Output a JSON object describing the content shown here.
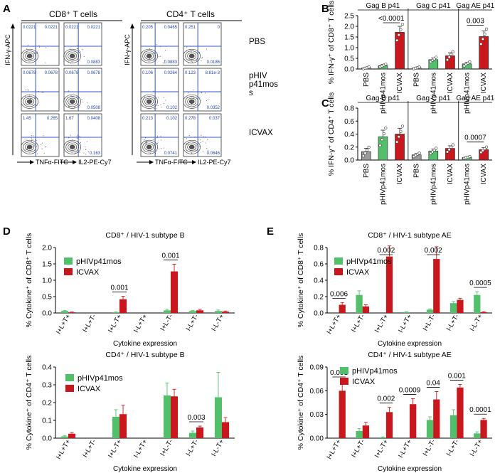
{
  "panels": {
    "A": "A",
    "B": "B",
    "C": "C",
    "D": "D",
    "E": "E"
  },
  "flow": {
    "cd8_title": "CD8⁺ T cells",
    "cd4_title": "CD4⁺ T cells",
    "y_axis_label": "IFN-γ-APC",
    "x_labels": [
      "TNFα-FITC",
      "IL2-PE-Cy7",
      "TNFα-FITC",
      "IL2-PE-Cy7"
    ],
    "rows": [
      {
        "label": "PBS",
        "plots": [
          {
            "ul": "0.0221",
            "ur": "0.0221",
            "lr": ""
          },
          {
            "ul": "0.0221",
            "ur": "0.0221",
            "lr": "0.0883"
          },
          {
            "ul": "0.205",
            "ur": "0.0465",
            "lr": ""
          },
          {
            "ul": "0.251",
            "ur": "0",
            "lr": "0.0186"
          }
        ]
      },
      {
        "label": "pHIV\np41mos\ns",
        "plots": [
          {
            "ul": "0.0678",
            "ur": "0.0678",
            "lr": ""
          },
          {
            "ul": "0.0678",
            "ur": "0.0678",
            "lr": "0.0508"
          },
          {
            "ul": "0.106",
            "ur": "0.0264",
            "lr": ""
          },
          {
            "ul": "0.123",
            "ur": "8.81e-3",
            "lr": "0.0352"
          }
        ]
      },
      {
        "label": "ICVAX",
        "plots": [
          {
            "ul": "1.45",
            "ur": "0.265",
            "lr": ""
          },
          {
            "ul": "1.67",
            "ur": "0.0408",
            "lr": "0.163"
          },
          {
            "ul": "0.213",
            "ur": "0.102",
            "lr": ""
          },
          {
            "ul": "0.278",
            "ur": "0.037",
            "lr": "0.0646"
          }
        ]
      }
    ],
    "extra_lr": [
      "0.0883",
      "0.102",
      "0.0741"
    ]
  },
  "chart_data": [
    {
      "id": "B",
      "type": "bar",
      "ylabel": "% IFN-γ⁺ of CD8⁺ T cells",
      "ylim": [
        0,
        2.5
      ],
      "yticks": [
        "0.0",
        "0.5",
        "1.0",
        "1.5",
        "2.0",
        "2.5"
      ],
      "groups": [
        "Gag B p41",
        "Gag C p41",
        "Gag AE p41"
      ],
      "categories": [
        "PBS",
        "pHIVp41mos",
        "ICVAX",
        "PBS",
        "pHIVp41mos",
        "ICVAX",
        "pHIVp41mos",
        "ICVAX"
      ],
      "values": [
        0.05,
        0.16,
        1.72,
        0.05,
        0.44,
        0.62,
        0.24,
        1.52
      ],
      "errors": [
        0.03,
        0.05,
        0.28,
        0.03,
        0.08,
        0.14,
        0.07,
        0.26
      ],
      "colors": [
        "#9a9a9a",
        "#52c06a",
        "#c8181e",
        "#9a9a9a",
        "#52c06a",
        "#c8181e",
        "#52c06a",
        "#c8181e"
      ],
      "annotations": [
        {
          "label": "<0.0001",
          "from": 1,
          "to": 2
        },
        {
          "label": "0.003",
          "from": 6,
          "to": 7
        }
      ]
    },
    {
      "id": "C",
      "type": "bar",
      "ylabel": "% IFN-γ⁺ of CD4⁺ T cells",
      "ylim": [
        0,
        0.8
      ],
      "yticks": [
        "0.0",
        "0.2",
        "0.4",
        "0.6",
        "0.8"
      ],
      "groups": [
        "Gag B p41",
        "Gag C p41",
        "Gag AE p41"
      ],
      "categories": [
        "PBS",
        "pHIVp41mos",
        "ICVAX",
        "PBS",
        "pHIVp41mos",
        "ICVAX",
        "pHIVp41mos",
        "ICVAX"
      ],
      "values": [
        0.13,
        0.36,
        0.4,
        0.08,
        0.14,
        0.18,
        0.04,
        0.16
      ],
      "errors": [
        0.05,
        0.1,
        0.09,
        0.02,
        0.03,
        0.04,
        0.01,
        0.03
      ],
      "colors": [
        "#9a9a9a",
        "#52c06a",
        "#c8181e",
        "#9a9a9a",
        "#52c06a",
        "#c8181e",
        "#52c06a",
        "#c8181e"
      ],
      "annotations": [
        {
          "label": "0.0007",
          "from": 6,
          "to": 7
        }
      ]
    },
    {
      "id": "D1",
      "type": "bar",
      "title": "CD8⁺ / HIV-1 subtype B",
      "ylabel": "% Cytokine⁺ of CD8⁺ T cells",
      "xlabel": "Cytokine expression",
      "ylim": [
        0,
        2.0
      ],
      "yticks": [
        "0.0",
        "0.5",
        "1.0",
        "1.5",
        "2.0"
      ],
      "categories": [
        "I+L+T+",
        "I+L+T-",
        "I+L-T+",
        "I-L+T+",
        "I+L-T-",
        "I-L+T-",
        "I-L-T+"
      ],
      "series": [
        {
          "name": "pHIVp41mos",
          "color": "#52c06a",
          "values": [
            0.06,
            0.0,
            0.02,
            0.0,
            0.08,
            0.06,
            0.06
          ],
          "errors": [
            0.02,
            0.0,
            0.01,
            0.0,
            0.03,
            0.02,
            0.03
          ]
        },
        {
          "name": "ICVAX",
          "color": "#c8181e",
          "values": [
            0.02,
            0.0,
            0.42,
            0.0,
            1.27,
            0.08,
            0.04
          ],
          "errors": [
            0.01,
            0.0,
            0.09,
            0.0,
            0.22,
            0.03,
            0.02
          ]
        }
      ],
      "annotations": [
        {
          "label": "0.001",
          "cat": 2
        },
        {
          "label": "0.001",
          "cat": 4
        }
      ]
    },
    {
      "id": "D2",
      "type": "bar",
      "title": "CD4⁺ / HIV-1 subtype B",
      "ylabel": "% Cytokine⁺ of CD4⁺ T cells",
      "xlabel": "Cytokine expression",
      "ylim": [
        0,
        0.4
      ],
      "yticks": [
        "0.0",
        "0.1",
        "0.2",
        "0.3",
        "0.4"
      ],
      "categories": [
        "I+L+T+",
        "I+L+T-",
        "I+L-T+",
        "I-L+T+",
        "I+L-T-",
        "I-L+T-",
        "I-L-T+"
      ],
      "series": [
        {
          "name": "pHIVp41mos",
          "color": "#52c06a",
          "values": [
            0.01,
            0.0,
            0.12,
            0.0,
            0.24,
            0.03,
            0.23
          ],
          "errors": [
            0.005,
            0.0,
            0.04,
            0.0,
            0.07,
            0.01,
            0.14
          ]
        },
        {
          "name": "ICVAX",
          "color": "#c8181e",
          "values": [
            0.025,
            0.0,
            0.135,
            0.0,
            0.235,
            0.06,
            0.09
          ],
          "errors": [
            0.006,
            0.0,
            0.05,
            0.0,
            0.04,
            0.008,
            0.025
          ]
        }
      ],
      "annotations": [
        {
          "label": "0.003",
          "cat": 5
        }
      ]
    },
    {
      "id": "E1",
      "type": "bar",
      "title": "CD8⁺ / HIV-1 subtype AE",
      "ylabel": "% Cytokine⁺ of CD8⁺ T cells",
      "xlabel": "Cytokine expression",
      "ylim": [
        0,
        0.8
      ],
      "yticks": [
        "0.0",
        "0.2",
        "0.4",
        "0.6",
        "0.8"
      ],
      "categories": [
        "I+L+T+",
        "I+L+T-",
        "I+L-T+",
        "I-L+T+",
        "I+L-T-",
        "I-L+T-",
        "I-L-T+"
      ],
      "series": [
        {
          "name": "pHIVp41mos",
          "color": "#52c06a",
          "values": [
            0.0,
            0.22,
            0.0,
            0.01,
            0.04,
            0.12,
            0.22
          ],
          "errors": [
            0.0,
            0.05,
            0.0,
            0.005,
            0.01,
            0.02,
            0.04
          ]
        },
        {
          "name": "ICVAX",
          "color": "#c8181e",
          "values": [
            0.1,
            0.08,
            0.69,
            0.0,
            0.66,
            0.16,
            0.01
          ],
          "errors": [
            0.025,
            0.02,
            0.13,
            0.0,
            0.15,
            0.02,
            0.005
          ]
        }
      ],
      "annotations": [
        {
          "label": "0.006",
          "cat": 0
        },
        {
          "label": "0.002",
          "cat": 2
        },
        {
          "label": "0.002",
          "cat": 4
        },
        {
          "label": "0.0005",
          "cat": 6
        }
      ]
    },
    {
      "id": "E2",
      "type": "bar",
      "title": "CD4⁺ / HIV-1 subtype AE",
      "ylabel": "% Cytokine⁺ of CD4⁺ T cells",
      "xlabel": "Cytokine expression",
      "ylim": [
        0,
        0.09
      ],
      "yticks": [
        "0.00",
        "0.03",
        "0.06",
        "0.09"
      ],
      "categories": [
        "I+L+T+",
        "I+L+T-",
        "I+L-T+",
        "I-L+T+",
        "I+L-T-",
        "I-L+T-",
        "I-L-T+"
      ],
      "series": [
        {
          "name": "pHIVp41mos",
          "color": "#52c06a",
          "values": [
            0.0,
            0.009,
            0.001,
            0.0,
            0.023,
            0.029,
            0.006
          ],
          "errors": [
            0.0,
            0.003,
            0.0005,
            0.0,
            0.004,
            0.007,
            0.002
          ]
        },
        {
          "name": "ICVAX",
          "color": "#c8181e",
          "values": [
            0.06,
            0.016,
            0.033,
            0.043,
            0.049,
            0.064,
            0.023
          ],
          "errors": [
            0.012,
            0.004,
            0.006,
            0.007,
            0.01,
            0.004,
            0.002
          ]
        }
      ],
      "annotations": [
        {
          "label": "0.001",
          "cat": 0
        },
        {
          "label": "0.002",
          "cat": 2
        },
        {
          "label": "0.0009",
          "cat": 3
        },
        {
          "label": "0.04",
          "cat": 4
        },
        {
          "label": "0.001",
          "cat": 5
        },
        {
          "label": "0.0001",
          "cat": 6
        }
      ]
    }
  ]
}
